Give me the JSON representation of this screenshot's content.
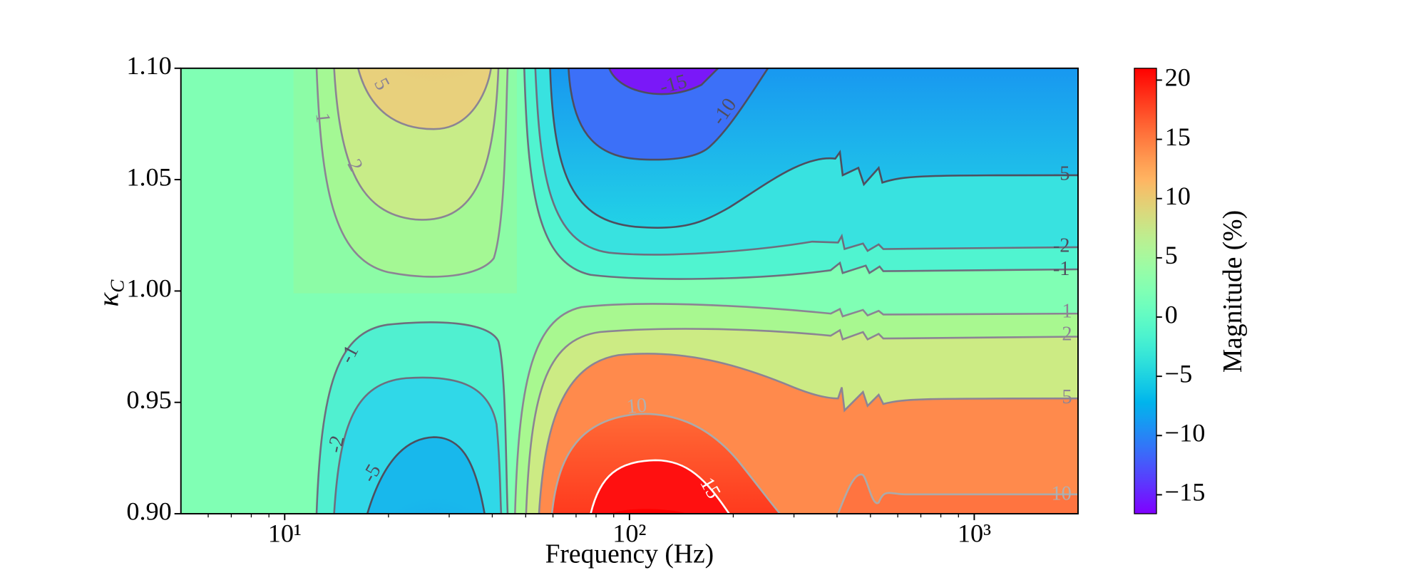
{
  "chart_data": {
    "type": "contour",
    "xlabel": "Frequency (Hz)",
    "ylabel": {
      "symbol": "κ",
      "subscript": "C"
    },
    "xscale": "log",
    "xlim": [
      5,
      2000
    ],
    "xticks": [
      {
        "value": 10,
        "label": "10¹"
      },
      {
        "value": 100,
        "label": "10²"
      },
      {
        "value": 1000,
        "label": "10³"
      }
    ],
    "xticks_minor": [
      6,
      7,
      8,
      9,
      20,
      30,
      40,
      50,
      60,
      70,
      80,
      90,
      200,
      300,
      400,
      500,
      600,
      700,
      800,
      900
    ],
    "ylim": [
      0.9,
      1.1
    ],
    "yticks": [
      {
        "value": 0.9,
        "label": "0.90"
      },
      0.95,
      {
        "value": 1.0,
        "label": "1.00"
      },
      1.05,
      {
        "value": 1.1,
        "label": "1.10"
      }
    ],
    "contours": {
      "levels": [
        -15,
        -10,
        -5,
        -2,
        -1,
        1,
        2,
        5,
        10,
        15
      ]
    },
    "colorbar": {
      "label": "Magnitude (%)",
      "colormap": "rainbow",
      "lim": [
        -16.6,
        21
      ],
      "ticks": [
        {
          "value": -15,
          "label": "−15"
        },
        {
          "value": -10,
          "label": "−10"
        },
        {
          "value": -5,
          "label": "−5"
        },
        0,
        5,
        10,
        15,
        20
      ]
    }
  }
}
